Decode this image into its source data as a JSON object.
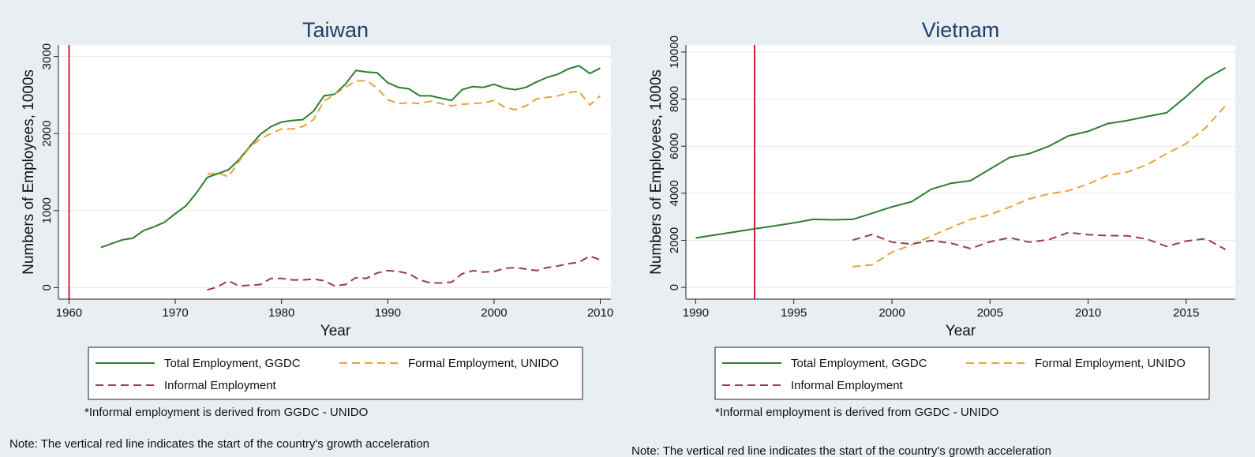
{
  "chart_data": [
    {
      "type": "line",
      "title": "Taiwan",
      "xlabel": "Year",
      "ylabel": "Numbers of Employees, 1000s",
      "xlim": [
        1959,
        2011
      ],
      "ylim": [
        -150,
        3150
      ],
      "xticks": [
        1960,
        1970,
        1980,
        1990,
        2000,
        2010
      ],
      "yticks": [
        0,
        1000,
        2000,
        3000
      ],
      "grid": true,
      "vline": 1960,
      "legend_position": "bottom",
      "series": [
        {
          "name": "Total Employment, GGDC",
          "color": "#2e7d32",
          "dash": "solid",
          "x": [
            1963,
            1964,
            1965,
            1966,
            1967,
            1968,
            1969,
            1970,
            1971,
            1972,
            1973,
            1974,
            1975,
            1976,
            1977,
            1978,
            1979,
            1980,
            1981,
            1982,
            1983,
            1984,
            1985,
            1986,
            1987,
            1988,
            1989,
            1990,
            1991,
            1992,
            1993,
            1994,
            1995,
            1996,
            1997,
            1998,
            1999,
            2000,
            2001,
            2002,
            2003,
            2004,
            2005,
            2006,
            2007,
            2008,
            2009,
            2010
          ],
          "y": [
            520,
            570,
            620,
            640,
            740,
            790,
            850,
            960,
            1060,
            1230,
            1430,
            1480,
            1530,
            1660,
            1830,
            1990,
            2090,
            2150,
            2170,
            2180,
            2290,
            2490,
            2510,
            2640,
            2820,
            2800,
            2790,
            2660,
            2600,
            2580,
            2490,
            2490,
            2460,
            2430,
            2570,
            2610,
            2600,
            2640,
            2590,
            2570,
            2600,
            2670,
            2730,
            2770,
            2840,
            2880,
            2780,
            2850
          ]
        },
        {
          "name": "Formal Employment, UNIDO",
          "color": "#e8a33d",
          "dash": "dashed",
          "x": [
            1973,
            1974,
            1975,
            1976,
            1977,
            1978,
            1979,
            1980,
            1981,
            1982,
            1983,
            1984,
            1985,
            1986,
            1987,
            1988,
            1989,
            1990,
            1991,
            1992,
            1993,
            1994,
            1995,
            1996,
            1997,
            1998,
            1999,
            2000,
            2001,
            2002,
            2003,
            2004,
            2005,
            2006,
            2007,
            2008,
            2009,
            2010
          ],
          "y": [
            1470,
            1490,
            1440,
            1640,
            1820,
            1930,
            2000,
            2060,
            2060,
            2090,
            2180,
            2420,
            2510,
            2600,
            2680,
            2690,
            2590,
            2440,
            2390,
            2400,
            2390,
            2420,
            2390,
            2360,
            2380,
            2390,
            2400,
            2430,
            2340,
            2310,
            2360,
            2450,
            2470,
            2490,
            2530,
            2550,
            2370,
            2490
          ]
        },
        {
          "name": "Informal Employment",
          "color": "#9c3b4f",
          "dash": "dashed",
          "x": [
            1973,
            1974,
            1975,
            1976,
            1977,
            1978,
            1979,
            1980,
            1981,
            1982,
            1983,
            1984,
            1985,
            1986,
            1987,
            1988,
            1989,
            1990,
            1991,
            1992,
            1993,
            1994,
            1995,
            1996,
            1997,
            1998,
            1999,
            2000,
            2001,
            2002,
            2003,
            2004,
            2005,
            2006,
            2007,
            2008,
            2009,
            2010
          ],
          "y": [
            -30,
            10,
            90,
            20,
            30,
            40,
            120,
            120,
            100,
            100,
            110,
            90,
            20,
            40,
            130,
            120,
            190,
            220,
            210,
            180,
            100,
            60,
            60,
            70,
            180,
            220,
            200,
            210,
            250,
            260,
            240,
            220,
            260,
            280,
            310,
            330,
            410,
            360
          ]
        }
      ]
    },
    {
      "type": "line",
      "title": "Vietnam",
      "xlabel": "Year",
      "ylabel": "Numbers of Employees, 1000s",
      "xlim": [
        1989.5,
        2017.5
      ],
      "ylim": [
        -500,
        10300
      ],
      "xticks": [
        1990,
        1995,
        2000,
        2005,
        2010,
        2015
      ],
      "yticks": [
        0,
        2000,
        4000,
        6000,
        8000,
        10000
      ],
      "grid": true,
      "vline": 1993,
      "legend_position": "bottom",
      "series": [
        {
          "name": "Total Employment, GGDC",
          "color": "#2e7d32",
          "dash": "solid",
          "x": [
            1990,
            1991,
            1992,
            1993,
            1994,
            1995,
            1996,
            1997,
            1998,
            1999,
            2000,
            2001,
            2002,
            2003,
            2004,
            2005,
            2006,
            2007,
            2008,
            2009,
            2010,
            2011,
            2012,
            2013,
            2014,
            2015,
            2016,
            2017
          ],
          "y": [
            2100,
            2230,
            2360,
            2490,
            2610,
            2740,
            2890,
            2870,
            2890,
            3150,
            3420,
            3640,
            4170,
            4420,
            4530,
            5030,
            5520,
            5680,
            6000,
            6440,
            6630,
            6960,
            7090,
            7260,
            7420,
            8110,
            8860,
            9330
          ]
        },
        {
          "name": "Formal Employment, UNIDO",
          "color": "#e8a33d",
          "dash": "dashed",
          "x": [
            1998,
            1999,
            2000,
            2001,
            2002,
            2003,
            2004,
            2005,
            2006,
            2007,
            2008,
            2009,
            2010,
            2011,
            2012,
            2013,
            2014,
            2015,
            2016,
            2017
          ],
          "y": [
            880,
            960,
            1500,
            1800,
            2180,
            2540,
            2880,
            3090,
            3410,
            3760,
            3970,
            4110,
            4390,
            4760,
            4900,
            5210,
            5680,
            6110,
            6790,
            7720
          ]
        },
        {
          "name": "Informal Employment",
          "color": "#9c3b4f",
          "dash": "dashed",
          "x": [
            1998,
            1999,
            2000,
            2001,
            2002,
            2003,
            2004,
            2005,
            2006,
            2007,
            2008,
            2009,
            2010,
            2011,
            2012,
            2013,
            2014,
            2015,
            2016,
            2017
          ],
          "y": [
            2010,
            2250,
            1920,
            1840,
            1990,
            1880,
            1650,
            1940,
            2110,
            1920,
            2030,
            2330,
            2240,
            2200,
            2190,
            2050,
            1740,
            1970,
            2070,
            1610
          ]
        }
      ]
    }
  ],
  "footnote": "*Informal employment is derived from GGDC - UNIDO",
  "note": "Note: The vertical red line indicates the start of the country's growth acceleration"
}
